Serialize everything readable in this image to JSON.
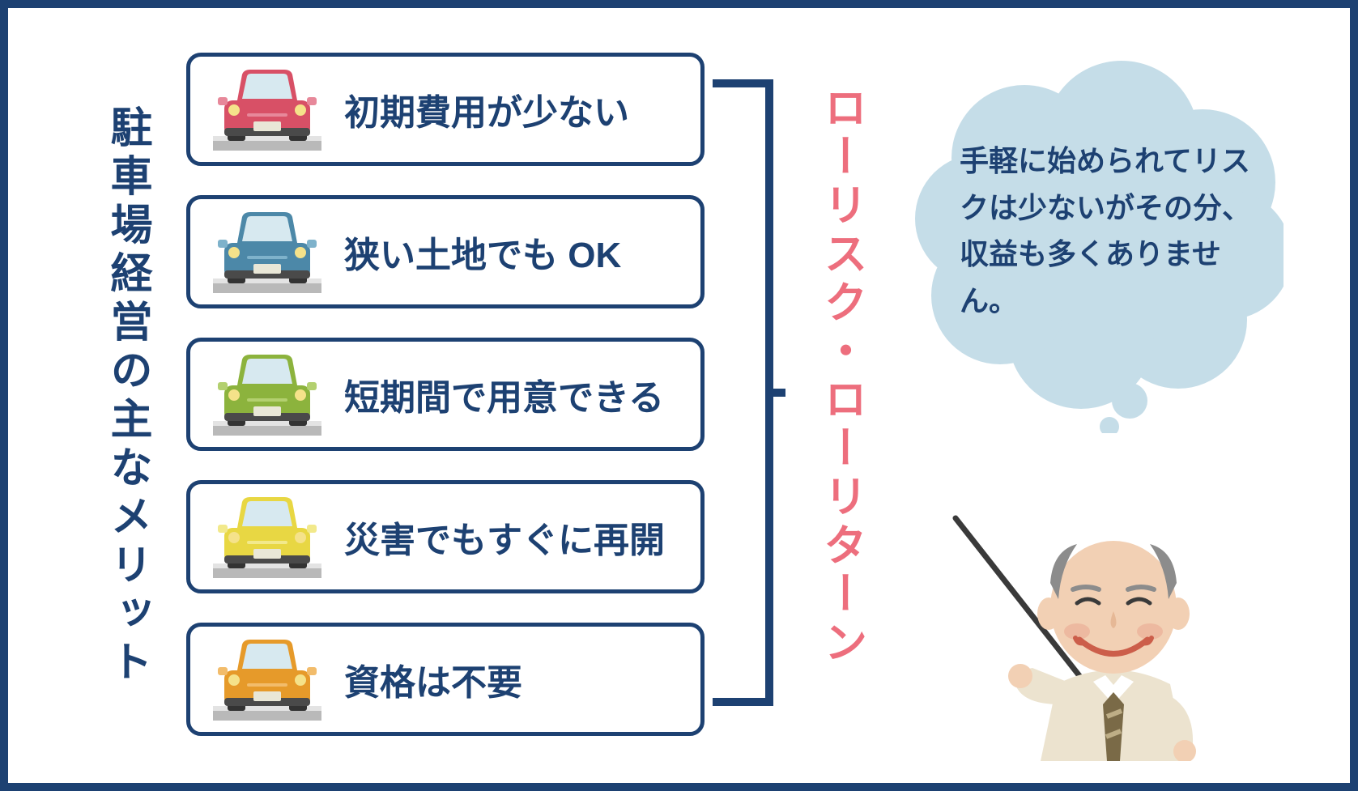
{
  "frame_border_color": "#1d4172",
  "background_color": "#ffffff",
  "title": "駐車場経営の主なメリット",
  "title_color": "#1d4172",
  "title_fontsize": 52,
  "merits": [
    {
      "label": "初期費用が少ない",
      "car_color": "#d85066",
      "car_accent": "#e7889a"
    },
    {
      "label": "狭い土地でも OK",
      "car_color": "#4c88a8",
      "car_accent": "#7eb2cb"
    },
    {
      "label": "短期間で用意できる",
      "car_color": "#8cb33d",
      "car_accent": "#b3d06f"
    },
    {
      "label": "災害でもすぐに再開",
      "car_color": "#e8d743",
      "car_accent": "#f2e98b"
    },
    {
      "label": "資格は不要",
      "car_color": "#e69a2a",
      "car_accent": "#f2bc6b"
    }
  ],
  "merit_box": {
    "border_color": "#1d4172",
    "border_width": 5,
    "border_radius": 18,
    "label_color": "#1d4172",
    "label_fontsize": 44
  },
  "car_icon": {
    "platform_color": "#b9b9b9",
    "platform_top_color": "#e3e3e3",
    "window_color": "#d7e9f0",
    "light_color": "#f5e28a",
    "bumper_color": "#4a4a4a",
    "plate_color": "#e9e7d7"
  },
  "bracket_color": "#1d4172",
  "bracket_stroke_width": 10,
  "summary": "ローリスク・ローリターン",
  "summary_color": "#ed6e7d",
  "summary_fontsize": 54,
  "bubble": {
    "fill": "#c5dde8",
    "text": "手軽に始められてリスクは少ないがその分、収益も多くありません。",
    "text_color": "#1d4172",
    "text_fontsize": 36
  },
  "teacher": {
    "skin": "#f2d0b4",
    "hair": "#8c8c8c",
    "shirt": "#ece3cf",
    "tie": "#7a6a47",
    "tie_stripe": "#beae86",
    "mouth": "#cc5e4a",
    "pointer": "#3a3a3a",
    "cheek": "#edb9a0"
  }
}
